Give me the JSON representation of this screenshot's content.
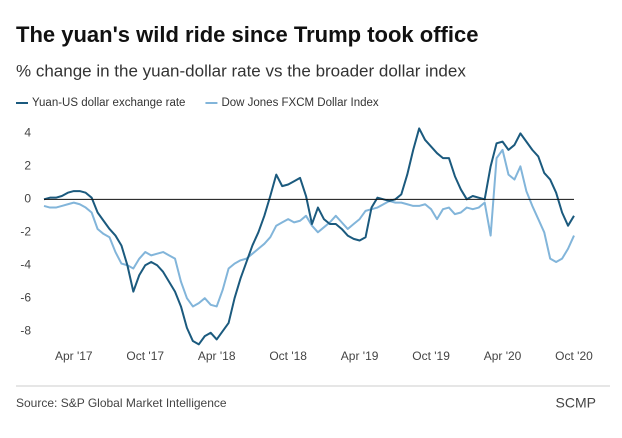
{
  "chart_data": {
    "type": "line",
    "title": "The yuan's wild ride since Trump took office",
    "subtitle": "% change in the yuan-dollar rate vs the broader dollar index",
    "source": "Source: S&P Global Market Intelligence",
    "credit": "SCMP",
    "categories": [
      null,
      null,
      null,
      null,
      null,
      "Apr '17",
      null,
      null,
      null,
      null,
      null,
      null,
      null,
      null,
      null,
      null,
      null,
      "Oct '17",
      null,
      null,
      null,
      null,
      null,
      null,
      null,
      null,
      null,
      null,
      null,
      "Apr '18",
      null,
      null,
      null,
      null,
      null,
      null,
      null,
      null,
      null,
      null,
      null,
      "Oct '18",
      null,
      null,
      null,
      null,
      null,
      null,
      null,
      null,
      null,
      null,
      null,
      "Apr '19",
      null,
      null,
      null,
      null,
      null,
      null,
      null,
      null,
      null,
      null,
      null,
      "Oct '19",
      null,
      null,
      null,
      null,
      null,
      null,
      null,
      null,
      null,
      null,
      null,
      "Apr '20",
      null,
      null,
      null,
      null,
      null,
      null,
      null,
      null,
      null,
      null,
      null,
      "Oct '20"
    ],
    "series": [
      {
        "name": "Yuan-US dollar exchange rate",
        "color": "#1b5a7e",
        "values": [
          0.0,
          0.1,
          0.1,
          0.2,
          0.4,
          0.5,
          0.5,
          0.4,
          0.1,
          -0.8,
          -1.3,
          -1.8,
          -2.2,
          -2.8,
          -4.0,
          -5.6,
          -4.6,
          -4.0,
          -3.8,
          -4.0,
          -4.4,
          -5.0,
          -5.6,
          -6.5,
          -7.8,
          -8.6,
          -8.8,
          -8.3,
          -8.1,
          -8.5,
          -8.0,
          -7.5,
          -6.0,
          -4.8,
          -3.8,
          -2.8,
          -2.0,
          -1.0,
          0.2,
          1.5,
          0.8,
          0.9,
          1.1,
          1.3,
          0.2,
          -1.5,
          -0.5,
          -1.2,
          -1.5,
          -1.5,
          -1.8,
          -2.2,
          -2.4,
          -2.5,
          -2.3,
          -0.5,
          0.1,
          0.0,
          -0.1,
          0.0,
          0.3,
          1.5,
          3.0,
          4.3,
          3.6,
          3.2,
          2.8,
          2.5,
          2.5,
          1.4,
          0.6,
          0.0,
          0.2,
          0.1,
          0.0,
          2.0,
          3.4,
          3.5,
          3.0,
          3.3,
          4.0,
          3.5,
          3.0,
          2.6,
          1.6,
          1.2,
          0.4,
          -0.8,
          -1.6,
          -1.0
        ]
      },
      {
        "name": "Dow Jones FXCM Dollar Index",
        "color": "#82b5da",
        "values": [
          -0.4,
          -0.5,
          -0.5,
          -0.4,
          -0.3,
          -0.2,
          -0.3,
          -0.5,
          -0.8,
          -1.8,
          -2.1,
          -2.3,
          -3.2,
          -3.9,
          -4.0,
          -4.2,
          -3.6,
          -3.2,
          -3.4,
          -3.3,
          -3.2,
          -3.4,
          -3.6,
          -5.0,
          -6.0,
          -6.5,
          -6.3,
          -6.0,
          -6.4,
          -6.5,
          -5.5,
          -4.2,
          -3.9,
          -3.7,
          -3.6,
          -3.3,
          -3.0,
          -2.7,
          -2.3,
          -1.6,
          -1.4,
          -1.2,
          -1.4,
          -1.3,
          -1.0,
          -1.6,
          -2.0,
          -1.7,
          -1.4,
          -1.0,
          -1.4,
          -1.8,
          -1.5,
          -1.2,
          -0.7,
          -0.6,
          -0.5,
          -0.3,
          -0.1,
          -0.2,
          -0.2,
          -0.3,
          -0.4,
          -0.4,
          -0.3,
          -0.6,
          -1.2,
          -0.6,
          -0.5,
          -0.9,
          -0.8,
          -0.5,
          -0.6,
          -0.5,
          -0.2,
          -2.2,
          2.5,
          3.0,
          1.5,
          1.2,
          2.0,
          0.5,
          -0.4,
          -1.2,
          -2.0,
          -3.6,
          -3.8,
          -3.6,
          -3.0,
          -2.2
        ]
      }
    ],
    "ylim": [
      -8.9,
      4.6
    ],
    "yticks": [
      -8,
      -6,
      -4,
      -2,
      0,
      2,
      4
    ],
    "grid": false
  }
}
